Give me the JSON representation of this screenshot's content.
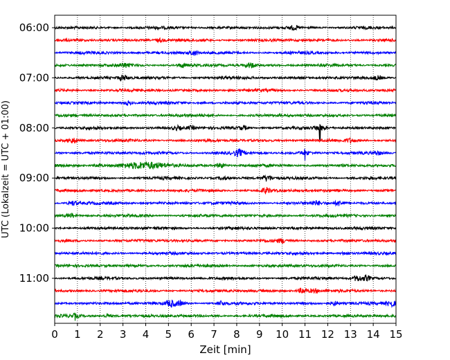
{
  "chart_data": {
    "type": "line",
    "title": "",
    "xlabel": "Zeit  [min]",
    "ylabel": "UTC (Lokalzeit = UTC + 01:00)",
    "xlim": [
      0,
      15
    ],
    "x_ticks": [
      "0",
      "1",
      "2",
      "3",
      "4",
      "5",
      "6",
      "7",
      "8",
      "9",
      "10",
      "11",
      "12",
      "13",
      "14",
      "15"
    ],
    "y_ticks": [
      "06:00",
      "07:00",
      "08:00",
      "09:00",
      "10:00",
      "11:00"
    ],
    "trace_interval_min": 15,
    "first_trace_time": "06:00",
    "trace_count": 24,
    "grid": "vertical dotted",
    "colors": [
      "#000000",
      "#ff0000",
      "#0000ff",
      "#008000"
    ],
    "events": [
      {
        "trace": 0,
        "t": 10.5,
        "amp": 1.3
      },
      {
        "trace": 1,
        "t": 4.6,
        "amp": 1.2
      },
      {
        "trace": 2,
        "t": 6.1,
        "amp": 2.0
      },
      {
        "trace": 3,
        "t": 5.6,
        "amp": 1.4
      },
      {
        "trace": 3,
        "t": 8.6,
        "amp": 2.0
      },
      {
        "trace": 3,
        "t": 3.1,
        "amp": 1.3
      },
      {
        "trace": 4,
        "t": 3.0,
        "amp": 2.2
      },
      {
        "trace": 4,
        "t": 14.2,
        "amp": 1.3
      },
      {
        "trace": 6,
        "t": 3.2,
        "amp": 1.5
      },
      {
        "trace": 8,
        "t": 5.4,
        "amp": 1.5
      },
      {
        "trace": 8,
        "t": 6.0,
        "amp": 1.3
      },
      {
        "trace": 8,
        "t": 8.3,
        "amp": 1.5
      },
      {
        "trace": 8,
        "t": 11.65,
        "amp": 6.0,
        "spike": true
      },
      {
        "trace": 9,
        "t": 0.8,
        "amp": 2.2
      },
      {
        "trace": 9,
        "t": 13.0,
        "amp": 1.4
      },
      {
        "trace": 10,
        "t": 8.1,
        "amp": 2.6
      },
      {
        "trace": 10,
        "t": 11.0,
        "amp": 4.0,
        "spike": true
      },
      {
        "trace": 10,
        "t": 14.2,
        "amp": 1.2
      },
      {
        "trace": 11,
        "t": 4.0,
        "amp": 2.4,
        "spread": 1.6
      },
      {
        "trace": 11,
        "t": 7.3,
        "amp": 2.0
      },
      {
        "trace": 11,
        "t": 1.9,
        "amp": 1.3
      },
      {
        "trace": 12,
        "t": 9.35,
        "amp": 2.4
      },
      {
        "trace": 12,
        "t": 7.4,
        "amp": 1.2
      },
      {
        "trace": 13,
        "t": 9.3,
        "amp": 2.2
      },
      {
        "trace": 14,
        "t": 0.8,
        "amp": 1.7
      },
      {
        "trace": 14,
        "t": 12.5,
        "amp": 2.0
      },
      {
        "trace": 14,
        "t": 11.5,
        "amp": 1.3
      },
      {
        "trace": 15,
        "t": 0.7,
        "amp": 1.6
      },
      {
        "trace": 17,
        "t": 10.0,
        "amp": 1.4
      },
      {
        "trace": 18,
        "t": 12.8,
        "amp": 1.3
      },
      {
        "trace": 20,
        "t": 13.3,
        "amp": 2.2
      },
      {
        "trace": 20,
        "t": 13.7,
        "amp": 2.0
      },
      {
        "trace": 21,
        "t": 10.9,
        "amp": 2.4
      },
      {
        "trace": 21,
        "t": 11.4,
        "amp": 1.6
      },
      {
        "trace": 22,
        "t": 5.1,
        "amp": 2.6
      },
      {
        "trace": 22,
        "t": 5.5,
        "amp": 1.8
      },
      {
        "trace": 22,
        "t": 14.8,
        "amp": 2.5
      },
      {
        "trace": 22,
        "t": 7.3,
        "amp": 1.6
      },
      {
        "trace": 22,
        "t": 12.3,
        "amp": 1.5
      },
      {
        "trace": 23,
        "t": 0.9,
        "amp": 2.6,
        "spike": true
      },
      {
        "trace": 23,
        "t": 2.3,
        "amp": 1.2
      }
    ]
  }
}
